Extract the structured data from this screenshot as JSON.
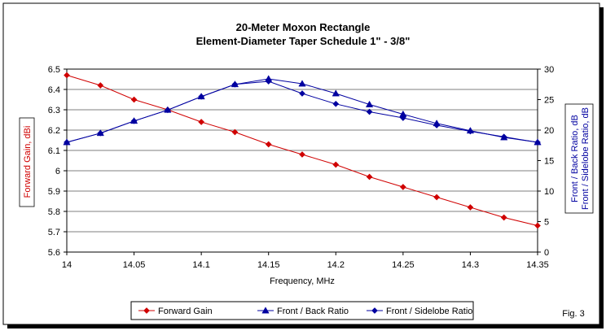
{
  "chart_data": {
    "type": "line",
    "title": "20-Meter Moxon Rectangle",
    "subtitle": "Element-Diameter Taper Schedule 1\" - 3/8\"",
    "xlabel": "Frequency, MHz",
    "ylabel_left": "Forward Gain, dBi",
    "ylabel_right_1": "Front / Back Ratio, dB",
    "ylabel_right_2": "Front / Sidelobe Ratio, dB",
    "figure_label": "Fig. 3",
    "x": [
      14.0,
      14.025,
      14.05,
      14.075,
      14.1,
      14.125,
      14.15,
      14.175,
      14.2,
      14.225,
      14.25,
      14.275,
      14.3,
      14.325,
      14.35
    ],
    "x_ticks": [
      "14",
      "14.05",
      "14.1",
      "14.15",
      "14.2",
      "14.25",
      "14.3",
      "14.35"
    ],
    "x_tick_values": [
      14.0,
      14.05,
      14.1,
      14.15,
      14.2,
      14.25,
      14.3,
      14.35
    ],
    "xlim": [
      14.0,
      14.35
    ],
    "ylim_left": [
      5.6,
      6.5
    ],
    "ylim_right": [
      0,
      30
    ],
    "y_ticks_left": [
      "6.5",
      "6.4",
      "6.3",
      "6.2",
      "6.1",
      "6",
      "5.9",
      "5.8",
      "5.7",
      "5.6"
    ],
    "y_tick_values_left": [
      6.5,
      6.4,
      6.3,
      6.2,
      6.1,
      6.0,
      5.9,
      5.8,
      5.7,
      5.6
    ],
    "y_ticks_right": [
      "30",
      "25",
      "20",
      "15",
      "10",
      "5",
      "0"
    ],
    "y_tick_values_right": [
      30,
      25,
      20,
      15,
      10,
      5,
      0
    ],
    "series": [
      {
        "name": "Forward Gain",
        "axis": "left",
        "color": "#d00000",
        "marker": "diamond",
        "values": [
          6.47,
          6.42,
          6.35,
          6.3,
          6.24,
          6.19,
          6.13,
          6.08,
          6.03,
          5.97,
          5.92,
          5.87,
          5.82,
          5.77,
          5.73
        ]
      },
      {
        "name": "Front / Back Ratio",
        "axis": "right",
        "color": "#0000a0",
        "marker": "triangle",
        "values": [
          18.0,
          19.5,
          21.5,
          23.3,
          25.5,
          27.5,
          28.4,
          27.6,
          26.0,
          24.2,
          22.6,
          21.1,
          19.9,
          18.8,
          18.0
        ]
      },
      {
        "name": "Front / Sidelobe Ratio",
        "axis": "right",
        "color": "#0000a0",
        "marker": "diamond",
        "values": [
          18.0,
          19.5,
          21.5,
          23.3,
          25.5,
          27.5,
          28.0,
          26.0,
          24.3,
          23.0,
          22.0,
          20.8,
          19.8,
          18.9,
          18.0
        ]
      }
    ],
    "legend_position": "bottom"
  }
}
